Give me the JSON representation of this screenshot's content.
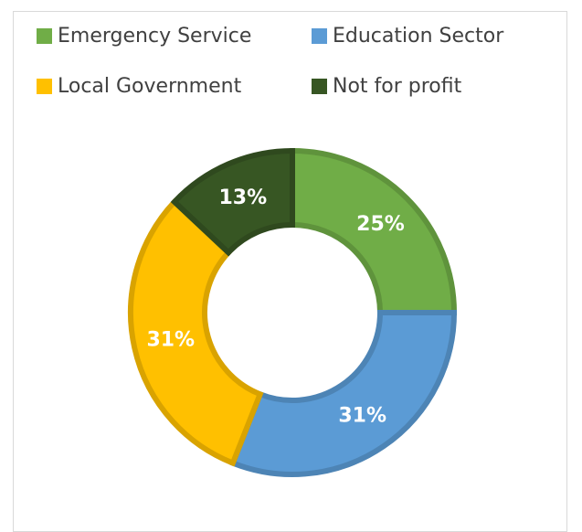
{
  "chart_data": {
    "type": "donut",
    "categories": [
      "Emergency Service",
      "Education Sector",
      "Local Government",
      "Not for profit"
    ],
    "values": [
      25,
      31,
      31,
      13
    ],
    "labels": [
      "25%",
      "31%",
      "31%",
      "13%"
    ],
    "colors": [
      "#70ad47",
      "#5b9bd5",
      "#ffc000",
      "#375623"
    ],
    "legend_position": "top",
    "legend": [
      {
        "label": "Emergency Service",
        "color": "#70ad47"
      },
      {
        "label": "Education Sector",
        "color": "#5b9bd5"
      },
      {
        "label": "Local Government",
        "color": "#ffc000"
      },
      {
        "label": "Not for profit",
        "color": "#375623"
      }
    ]
  }
}
